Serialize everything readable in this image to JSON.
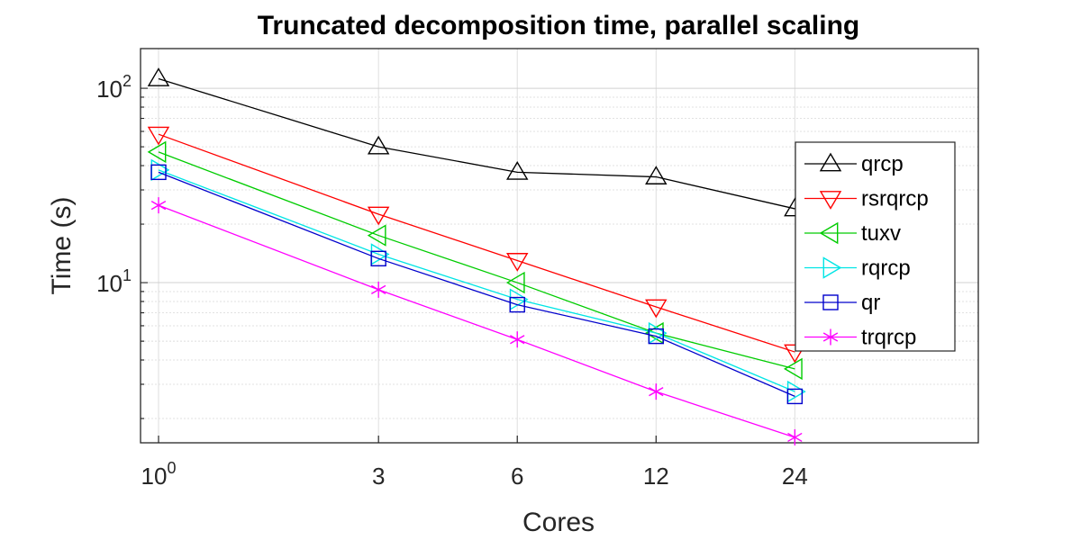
{
  "chart_data": {
    "type": "line",
    "title": "Truncated decomposition time, parallel scaling",
    "xlabel": "Cores",
    "ylabel": "Time (s)",
    "xscale": "log",
    "yscale": "log",
    "xlim": [
      1,
      60
    ],
    "ylim": [
      1.5,
      160
    ],
    "grid": true,
    "legend_position": "right",
    "x": [
      1,
      3,
      6,
      12,
      24
    ],
    "x_tick_labels": [
      {
        "value": 1,
        "base": "10",
        "exp": "0"
      },
      {
        "value": 3,
        "label": "3"
      },
      {
        "value": 6,
        "label": "6"
      },
      {
        "value": 12,
        "label": "12"
      },
      {
        "value": 24,
        "label": "24"
      }
    ],
    "y_tick_labels": [
      {
        "value": 10,
        "base": "10",
        "exp": "1"
      },
      {
        "value": 100,
        "base": "10",
        "exp": "2"
      }
    ],
    "series": [
      {
        "name": "qrcp",
        "color": "#000000",
        "marker": "triangle-up",
        "values": [
          112,
          50,
          37,
          35,
          24
        ]
      },
      {
        "name": "rsrqrcp",
        "color": "#ff0000",
        "marker": "triangle-down",
        "values": [
          58,
          22.5,
          13,
          7.5,
          4.4
        ]
      },
      {
        "name": "tuxv",
        "color": "#00cc00",
        "marker": "triangle-left",
        "values": [
          47,
          17.5,
          10,
          5.5,
          3.6
        ]
      },
      {
        "name": "rqrcp",
        "color": "#00e5e5",
        "marker": "triangle-right",
        "values": [
          38,
          14,
          8.2,
          5.5,
          2.75
        ]
      },
      {
        "name": "qr",
        "color": "#0000cc",
        "marker": "square",
        "values": [
          37,
          13.3,
          7.7,
          5.3,
          2.6
        ]
      },
      {
        "name": "trqrcp",
        "color": "#ff00ff",
        "marker": "asterisk",
        "values": [
          25,
          9.2,
          5.1,
          2.75,
          1.6
        ]
      }
    ]
  }
}
